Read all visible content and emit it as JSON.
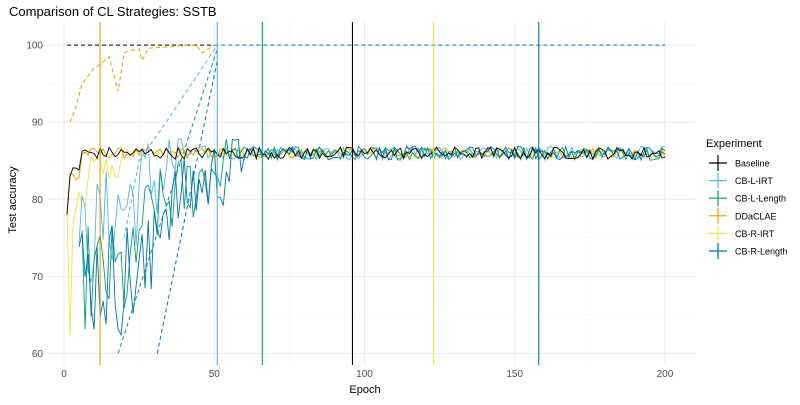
{
  "chart_data": {
    "type": "line",
    "title": "Comparison of CL Strategies: SSTB",
    "xlabel": "Epoch",
    "ylabel": "Test accuracy",
    "xlim": [
      -5,
      210
    ],
    "ylim": [
      58.5,
      103
    ],
    "xticks": [
      0,
      50,
      100,
      150,
      200
    ],
    "yticks": [
      60,
      70,
      80,
      90,
      100
    ],
    "grid": true,
    "legend_title": "Experiment",
    "legend_position": "right",
    "series": [
      {
        "name": "Baseline",
        "color": "#000000"
      },
      {
        "name": "CB-L-IRT",
        "color": "#56B4E9"
      },
      {
        "name": "CB-L-Length",
        "color": "#009E73"
      },
      {
        "name": "DDaCLAE",
        "color": "#E69F00"
      },
      {
        "name": "CB-R-IRT",
        "color": "#F0E442"
      },
      {
        "name": "CB-R-Length",
        "color": "#0072B2"
      }
    ],
    "vertical_lines": [
      {
        "series": "DDaCLAE",
        "x": 12
      },
      {
        "series": "CB-L-IRT",
        "x": 51
      },
      {
        "series": "CB-L-Length",
        "x": 66
      },
      {
        "series": "Baseline",
        "x": 96
      },
      {
        "series": "CB-R-IRT",
        "x": 123
      },
      {
        "series": "CB-R-Length",
        "x": 158
      }
    ],
    "dashed_lines": [
      {
        "series": "Baseline",
        "points": [
          [
            1,
            100
          ],
          [
            50,
            100
          ]
        ]
      },
      {
        "series": "CB-R-Length",
        "points": [
          [
            50,
            100
          ],
          [
            200,
            100
          ]
        ]
      },
      {
        "series": "DDaCLAE",
        "points": [
          [
            2,
            90
          ],
          [
            4,
            92
          ],
          [
            6,
            95
          ],
          [
            8,
            96
          ],
          [
            10,
            97
          ],
          [
            12,
            97.5
          ],
          [
            15,
            98.5
          ],
          [
            18,
            94
          ],
          [
            20,
            99
          ],
          [
            22,
            99.3
          ],
          [
            25,
            99.5
          ],
          [
            26,
            98
          ],
          [
            28,
            99.6
          ],
          [
            32,
            99.7
          ],
          [
            36,
            99.8
          ],
          [
            40,
            100
          ],
          [
            44,
            100
          ],
          [
            46,
            99
          ],
          [
            50,
            100
          ]
        ]
      },
      {
        "series": "CB-L-Length",
        "points": [
          [
            18,
            60
          ],
          [
            51,
            99.5
          ]
        ]
      },
      {
        "series": "CB-L-IRT",
        "points": [
          [
            20,
            75
          ],
          [
            25,
            85
          ],
          [
            34,
            90
          ],
          [
            51,
            100
          ]
        ]
      },
      {
        "series": "CB-R-Length",
        "points": [
          [
            31,
            60
          ],
          [
            51,
            98
          ]
        ]
      }
    ]
  }
}
